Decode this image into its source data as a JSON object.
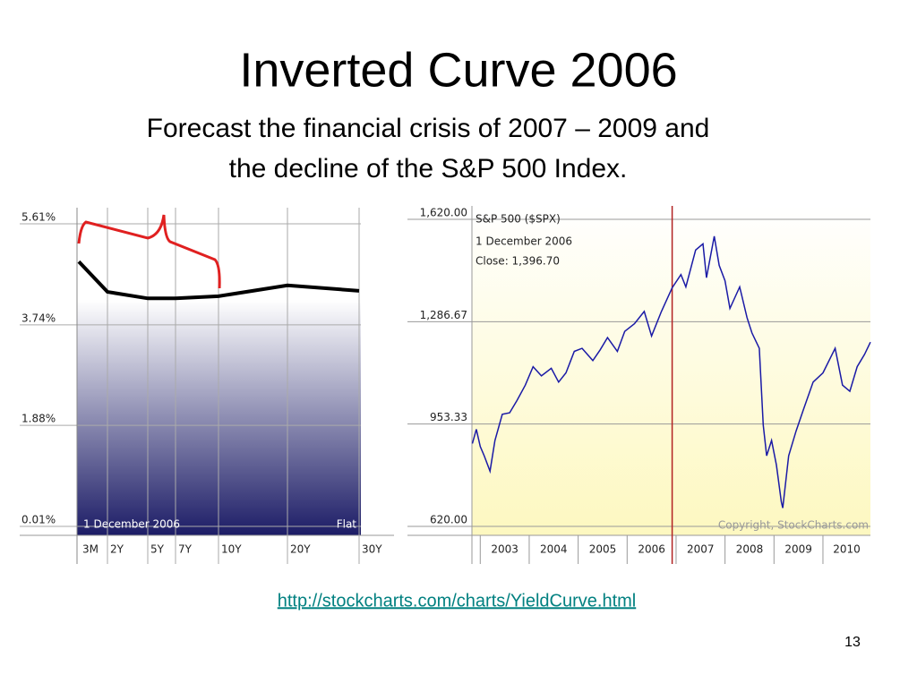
{
  "title": "Inverted Curve 2006",
  "subtitle": [
    "Forecast the financial crisis of 2007 – 2009 and",
    "the decline of the S&P 500 Index."
  ],
  "chart_data": [
    {
      "type": "line",
      "categories": [
        "3M",
        "2Y",
        "5Y",
        "7Y",
        "10Y",
        "20Y",
        "30Y"
      ],
      "values": [
        4.91,
        4.35,
        4.23,
        4.23,
        4.27,
        4.47,
        4.37
      ],
      "color": "#000000",
      "ylim": [
        0.01,
        5.61
      ],
      "yticks": [
        {
          "value": 5.61,
          "label": "5.61%"
        },
        {
          "value": 3.74,
          "label": "3.74%"
        },
        {
          "value": 1.88,
          "label": "1.88%"
        },
        {
          "value": 0.01,
          "label": "0.01%"
        }
      ],
      "annotations": [
        "1 December 2006",
        "Flat"
      ],
      "grid": true
    },
    {
      "type": "line",
      "title": "S&P 500 ($SPX)",
      "annotations": [
        "1 December 2006",
        "Close: 1,396.70",
        "Copyright, StockCharts.com"
      ],
      "x": [
        2002.84,
        2002.92,
        2003.0,
        2003.08,
        2003.2,
        2003.3,
        2003.45,
        2003.6,
        2003.75,
        2003.92,
        2004.08,
        2004.25,
        2004.45,
        2004.6,
        2004.75,
        2004.92,
        2005.08,
        2005.3,
        2005.45,
        2005.6,
        2005.8,
        2005.95,
        2006.15,
        2006.35,
        2006.5,
        2006.7,
        2006.92,
        2007.1,
        2007.2,
        2007.4,
        2007.55,
        2007.62,
        2007.78,
        2007.88,
        2008.0,
        2008.1,
        2008.3,
        2008.45,
        2008.55,
        2008.7,
        2008.78,
        2008.85,
        2008.95,
        2009.05,
        2009.15,
        2009.18,
        2009.3,
        2009.45,
        2009.6,
        2009.8,
        2010.0,
        2010.25,
        2010.4,
        2010.55,
        2010.7,
        2010.85,
        2010.97
      ],
      "values": [
        890,
        936,
        880,
        850,
        800,
        900,
        985,
        990,
        1030,
        1080,
        1140,
        1110,
        1135,
        1090,
        1120,
        1190,
        1200,
        1160,
        1195,
        1235,
        1190,
        1255,
        1280,
        1320,
        1240,
        1320,
        1397,
        1440,
        1400,
        1520,
        1540,
        1430,
        1565,
        1470,
        1420,
        1330,
        1400,
        1300,
        1250,
        1200,
        950,
        850,
        900,
        820,
        700,
        680,
        850,
        930,
        1000,
        1090,
        1120,
        1200,
        1080,
        1060,
        1140,
        1180,
        1220
      ],
      "color": "#1a1aa6",
      "highlight_x": 2006.92,
      "highlight_color": "#b22222",
      "xlim": [
        2002.83,
        2010.97
      ],
      "xticks": [
        {
          "value": 2003,
          "label": "2003"
        },
        {
          "value": 2004,
          "label": "2004"
        },
        {
          "value": 2005,
          "label": "2005"
        },
        {
          "value": 2006,
          "label": "2006"
        },
        {
          "value": 2007,
          "label": "2007"
        },
        {
          "value": 2008,
          "label": "2008"
        },
        {
          "value": 2009,
          "label": "2009"
        },
        {
          "value": 2010,
          "label": "2010"
        }
      ],
      "ylim": [
        620,
        1620
      ],
      "yticks": [
        {
          "value": 620,
          "label": "620.00"
        },
        953.33,
        {
          "value": 1286.67,
          "label": "1,286.67"
        },
        {
          "value": 1620,
          "label": "1,620.00"
        }
      ],
      "grid": true
    }
  ],
  "link": "http://stockcharts.com/charts/YieldCurve.html",
  "page_number": "13"
}
